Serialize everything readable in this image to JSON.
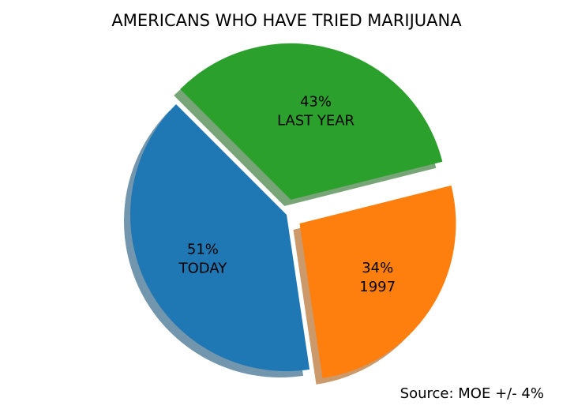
{
  "chart_data": {
    "type": "pie",
    "title": "AMERICANS WHO HAVE TRIED MARIJUANA",
    "slices": [
      {
        "label": "TODAY",
        "value": 51,
        "value_label": "51%",
        "color": "#1f77b4",
        "exploded": false
      },
      {
        "label": "1997",
        "value": 34,
        "value_label": "34%",
        "color": "#ff7f0e",
        "exploded": true
      },
      {
        "label": "LAST YEAR",
        "value": 43,
        "value_label": "43%",
        "color": "#2ca02c",
        "exploded": true
      }
    ],
    "shadow": true,
    "start_angle_deg": 135,
    "direction": "counterclockwise",
    "note": "Source: MOE +/- 4%"
  }
}
